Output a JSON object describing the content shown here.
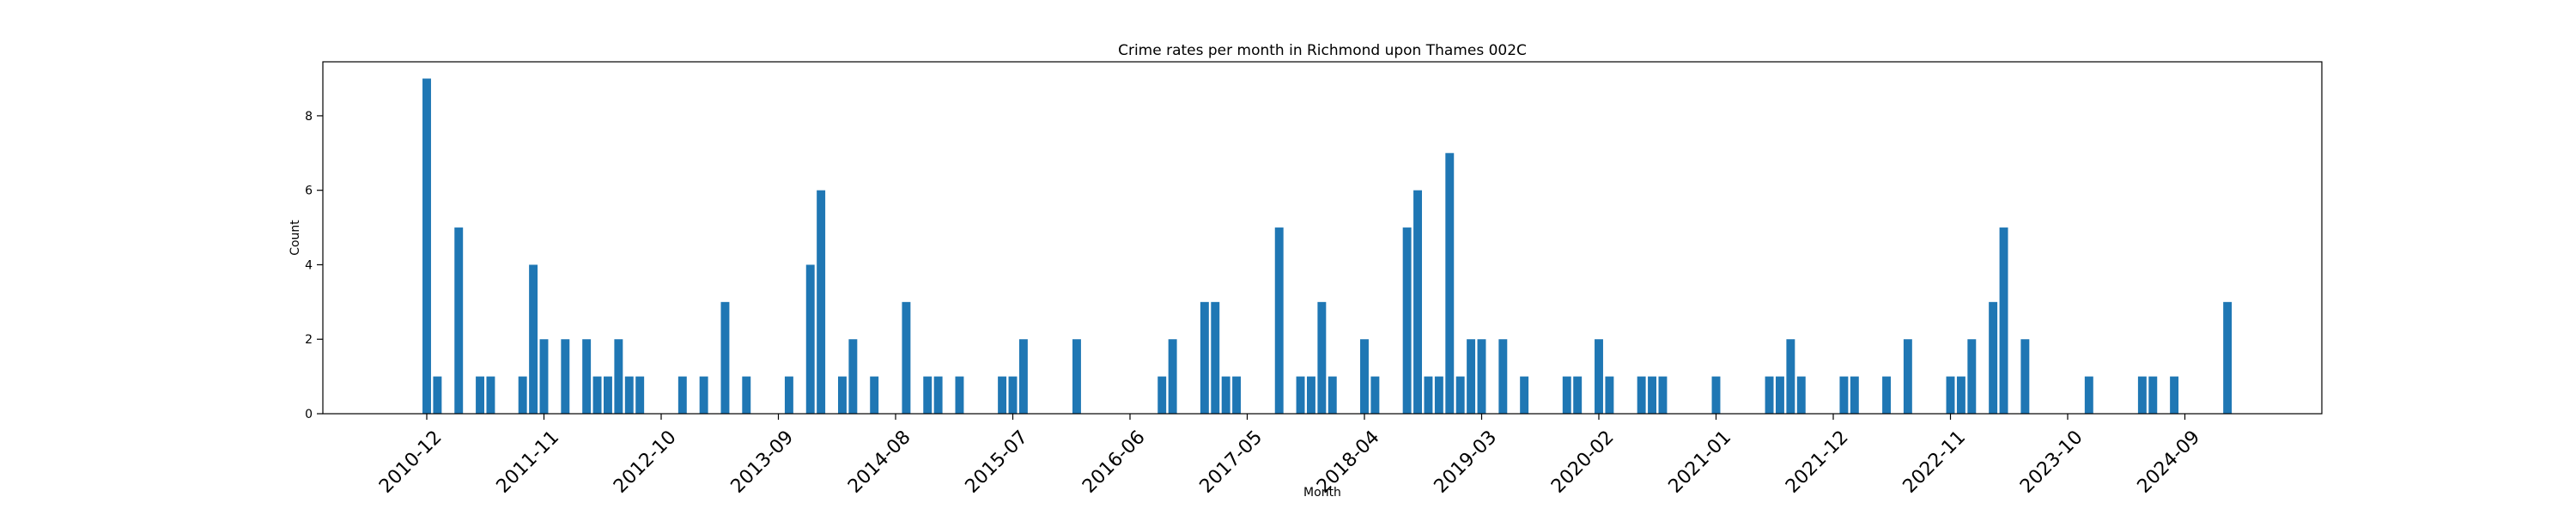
{
  "chart_data": {
    "type": "bar",
    "title": "Crime rates per month in Richmond upon Thames 002C",
    "xlabel": "Month",
    "ylabel": "Count",
    "ylim": [
      0,
      9.45
    ],
    "yticks": [
      0,
      2,
      4,
      6,
      8
    ],
    "xticks": [
      "2010-12",
      "2011-11",
      "2012-10",
      "2013-09",
      "2014-08",
      "2015-07",
      "2016-06",
      "2017-05",
      "2018-04",
      "2019-03",
      "2020-02",
      "2021-01",
      "2021-12",
      "2022-11",
      "2023-10",
      "2024-09"
    ],
    "bar_color": "#1f77b4",
    "grid": false,
    "points": [
      {
        "x": "2010-12",
        "y": 9
      },
      {
        "x": "2011-01",
        "y": 1
      },
      {
        "x": "2011-03",
        "y": 5
      },
      {
        "x": "2011-05",
        "y": 1
      },
      {
        "x": "2011-06",
        "y": 1
      },
      {
        "x": "2011-09",
        "y": 1
      },
      {
        "x": "2011-10",
        "y": 4
      },
      {
        "x": "2011-11",
        "y": 2
      },
      {
        "x": "2012-01",
        "y": 2
      },
      {
        "x": "2012-03",
        "y": 2
      },
      {
        "x": "2012-04",
        "y": 1
      },
      {
        "x": "2012-05",
        "y": 1
      },
      {
        "x": "2012-06",
        "y": 2
      },
      {
        "x": "2012-07",
        "y": 1
      },
      {
        "x": "2012-08",
        "y": 1
      },
      {
        "x": "2012-12",
        "y": 1
      },
      {
        "x": "2013-02",
        "y": 1
      },
      {
        "x": "2013-04",
        "y": 3
      },
      {
        "x": "2013-06",
        "y": 1
      },
      {
        "x": "2013-10",
        "y": 1
      },
      {
        "x": "2013-12",
        "y": 4
      },
      {
        "x": "2014-01",
        "y": 6
      },
      {
        "x": "2014-03",
        "y": 1
      },
      {
        "x": "2014-04",
        "y": 2
      },
      {
        "x": "2014-06",
        "y": 1
      },
      {
        "x": "2014-09",
        "y": 3
      },
      {
        "x": "2014-11",
        "y": 1
      },
      {
        "x": "2014-12",
        "y": 1
      },
      {
        "x": "2015-02",
        "y": 1
      },
      {
        "x": "2015-06",
        "y": 1
      },
      {
        "x": "2015-07",
        "y": 1
      },
      {
        "x": "2015-08",
        "y": 2
      },
      {
        "x": "2016-01",
        "y": 2
      },
      {
        "x": "2016-09",
        "y": 1
      },
      {
        "x": "2016-10",
        "y": 2
      },
      {
        "x": "2017-01",
        "y": 3
      },
      {
        "x": "2017-02",
        "y": 3
      },
      {
        "x": "2017-03",
        "y": 1
      },
      {
        "x": "2017-04",
        "y": 1
      },
      {
        "x": "2017-08",
        "y": 5
      },
      {
        "x": "2017-10",
        "y": 1
      },
      {
        "x": "2017-11",
        "y": 1
      },
      {
        "x": "2017-12",
        "y": 3
      },
      {
        "x": "2018-01",
        "y": 1
      },
      {
        "x": "2018-04",
        "y": 2
      },
      {
        "x": "2018-05",
        "y": 1
      },
      {
        "x": "2018-08",
        "y": 5
      },
      {
        "x": "2018-09",
        "y": 6
      },
      {
        "x": "2018-10",
        "y": 1
      },
      {
        "x": "2018-11",
        "y": 1
      },
      {
        "x": "2018-12",
        "y": 7
      },
      {
        "x": "2019-01",
        "y": 1
      },
      {
        "x": "2019-02",
        "y": 2
      },
      {
        "x": "2019-03",
        "y": 2
      },
      {
        "x": "2019-05",
        "y": 2
      },
      {
        "x": "2019-07",
        "y": 1
      },
      {
        "x": "2019-11",
        "y": 1
      },
      {
        "x": "2019-12",
        "y": 1
      },
      {
        "x": "2020-02",
        "y": 2
      },
      {
        "x": "2020-03",
        "y": 1
      },
      {
        "x": "2020-06",
        "y": 1
      },
      {
        "x": "2020-07",
        "y": 1
      },
      {
        "x": "2020-08",
        "y": 1
      },
      {
        "x": "2021-01",
        "y": 1
      },
      {
        "x": "2021-06",
        "y": 1
      },
      {
        "x": "2021-07",
        "y": 1
      },
      {
        "x": "2021-08",
        "y": 2
      },
      {
        "x": "2021-09",
        "y": 1
      },
      {
        "x": "2022-01",
        "y": 1
      },
      {
        "x": "2022-02",
        "y": 1
      },
      {
        "x": "2022-05",
        "y": 1
      },
      {
        "x": "2022-07",
        "y": 2
      },
      {
        "x": "2022-11",
        "y": 1
      },
      {
        "x": "2022-12",
        "y": 1
      },
      {
        "x": "2023-01",
        "y": 2
      },
      {
        "x": "2023-03",
        "y": 3
      },
      {
        "x": "2023-04",
        "y": 5
      },
      {
        "x": "2023-06",
        "y": 2
      },
      {
        "x": "2023-12",
        "y": 1
      },
      {
        "x": "2024-05",
        "y": 1
      },
      {
        "x": "2024-06",
        "y": 1
      },
      {
        "x": "2024-08",
        "y": 1
      },
      {
        "x": "2025-01",
        "y": 3
      }
    ]
  }
}
